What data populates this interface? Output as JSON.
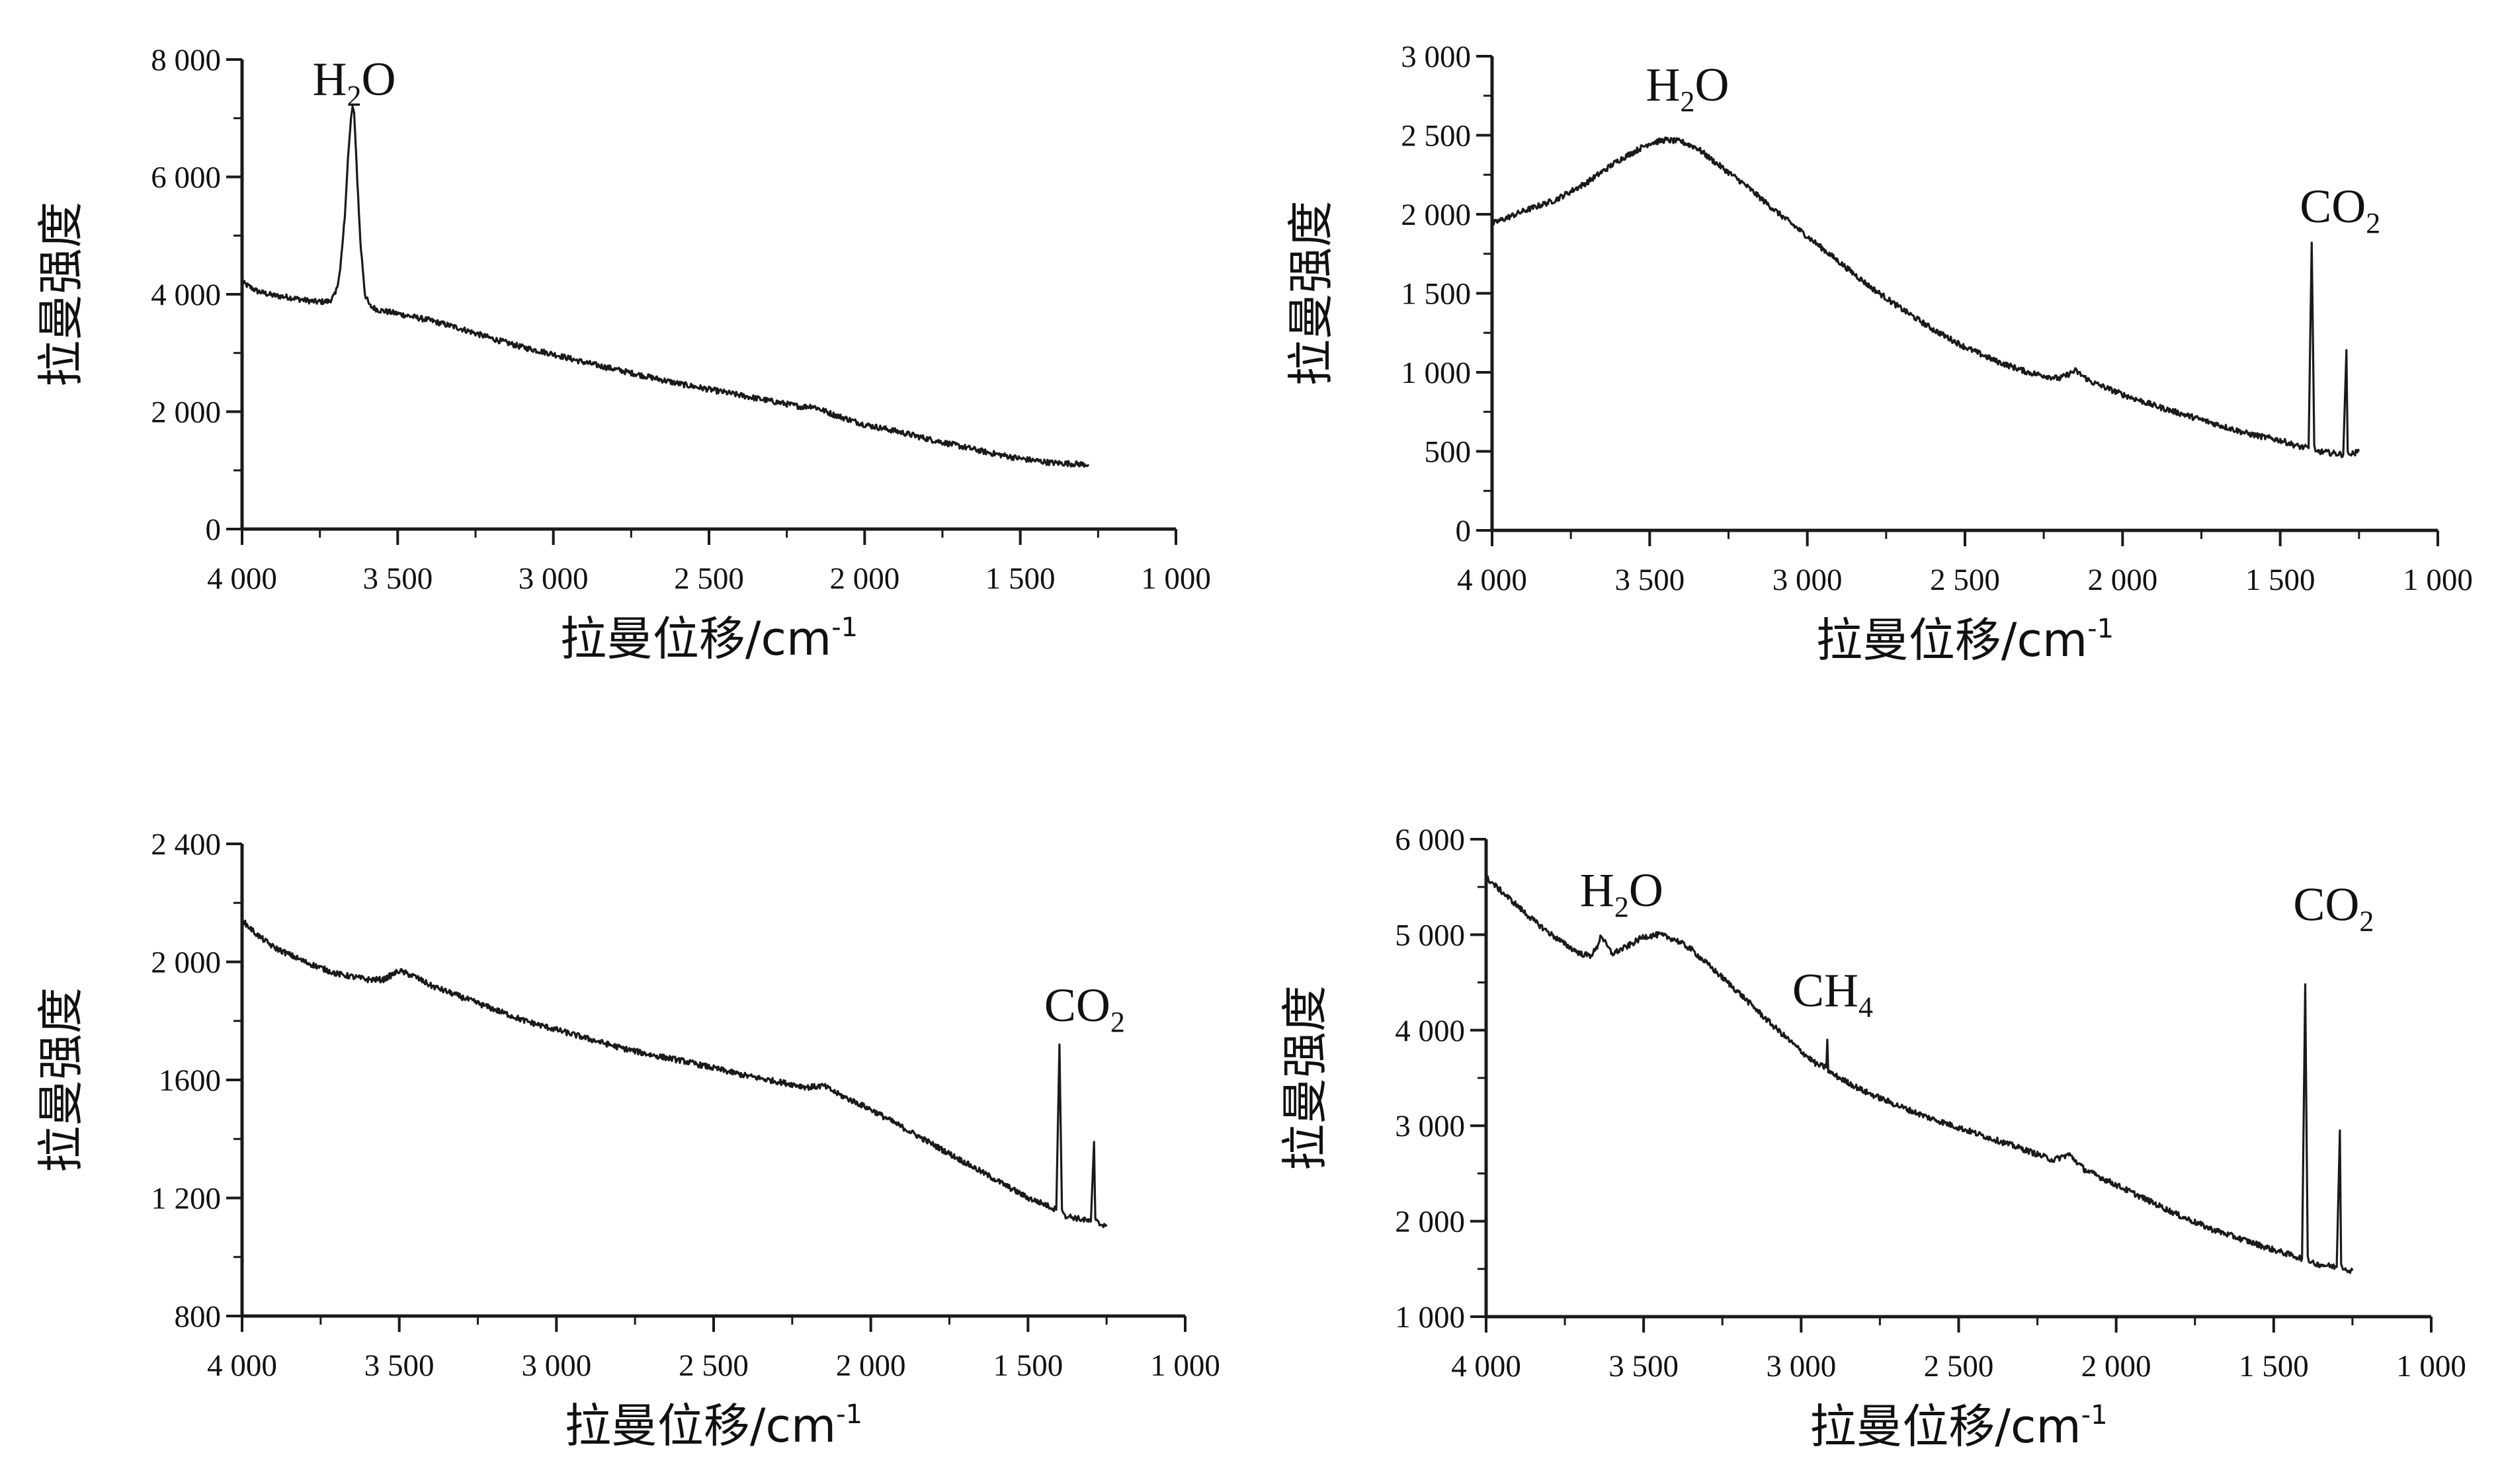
{
  "chart_data": [
    {
      "type": "line",
      "xlabel": "拉曼位移/cm",
      "xlabel_sup": "-1",
      "ylabel": "拉曼强度",
      "xlim": [
        4000,
        1000
      ],
      "ylim": [
        0,
        8000
      ],
      "xticks": [
        "4 000",
        "3 500",
        "3 000",
        "2 500",
        "2 000",
        "1 500",
        "1 000"
      ],
      "yticks": [
        "0",
        "2 000",
        "4 000",
        "6 000",
        "8 000"
      ],
      "annotations": [
        {
          "base": "H",
          "sub": "2",
          "tail": "O",
          "x": 3640,
          "y": 7400
        }
      ],
      "series": [
        {
          "x": [
            4000,
            3950,
            3900,
            3850,
            3800,
            3760,
            3720,
            3700,
            3685,
            3670,
            3660,
            3650,
            3645,
            3640,
            3632,
            3620,
            3605,
            3590,
            3560,
            3500,
            3400,
            3300,
            3200,
            3100,
            3000,
            2900,
            2800,
            2700,
            2600,
            2500,
            2400,
            2300,
            2200,
            2170,
            2100,
            2000,
            1900,
            1800,
            1700,
            1600,
            1500,
            1400,
            1280
          ],
          "y": [
            4200,
            4050,
            3980,
            3950,
            3900,
            3870,
            3880,
            4000,
            4400,
            5300,
            6300,
            7000,
            7200,
            7100,
            6200,
            4900,
            4000,
            3800,
            3730,
            3670,
            3560,
            3420,
            3250,
            3100,
            2980,
            2840,
            2720,
            2600,
            2480,
            2380,
            2280,
            2180,
            2080,
            2100,
            1950,
            1780,
            1670,
            1540,
            1420,
            1300,
            1200,
            1130,
            1100
          ]
        }
      ]
    },
    {
      "type": "line",
      "xlabel": "拉曼位移/cm",
      "xlabel_sup": "-1",
      "ylabel": "拉曼强度",
      "xlim": [
        4000,
        1000
      ],
      "ylim": [
        0,
        3000
      ],
      "xticks": [
        "4 000",
        "3 500",
        "3 000",
        "2 500",
        "2 000",
        "1 500",
        "1 000"
      ],
      "yticks": [
        "0",
        "500",
        "1 000",
        "1 500",
        "2 000",
        "2 500",
        "3 000"
      ],
      "annotations": [
        {
          "base": "H",
          "sub": "2",
          "tail": "O",
          "x": 3380,
          "y": 2720
        },
        {
          "base": "CO",
          "sub": "2",
          "tail": "",
          "x": 1310,
          "y": 1950
        }
      ],
      "series": [
        {
          "x": [
            4000,
            3900,
            3800,
            3700,
            3600,
            3500,
            3450,
            3400,
            3350,
            3300,
            3200,
            3100,
            3000,
            2900,
            2800,
            2700,
            2600,
            2500,
            2400,
            2300,
            2200,
            2150,
            2100,
            2000,
            1900,
            1800,
            1700,
            1600,
            1500,
            1440,
            1410,
            1400,
            1392,
            1388,
            1380,
            1340,
            1300,
            1290,
            1286,
            1282,
            1275,
            1250
          ],
          "y": [
            1940,
            2020,
            2090,
            2200,
            2340,
            2450,
            2470,
            2460,
            2420,
            2340,
            2190,
            2020,
            1860,
            1700,
            1540,
            1400,
            1270,
            1160,
            1070,
            1000,
            960,
            1010,
            940,
            860,
            790,
            730,
            670,
            610,
            570,
            530,
            520,
            1820,
            540,
            500,
            500,
            490,
            480,
            1140,
            500,
            480,
            480,
            500
          ]
        }
      ]
    },
    {
      "type": "line",
      "xlabel": "拉曼位移/cm",
      "xlabel_sup": "-1",
      "ylabel": "拉曼强度",
      "xlim": [
        4000,
        1000
      ],
      "ylim": [
        800,
        2400
      ],
      "xticks": [
        "4 000",
        "3 500",
        "3 000",
        "2 500",
        "2 000",
        "1 500",
        "1 000"
      ],
      "yticks": [
        "800",
        "1 200",
        "1600",
        "2 000",
        "2 400"
      ],
      "annotations": [
        {
          "base": "CO",
          "sub": "2",
          "tail": "",
          "x": 1320,
          "y": 1800
        }
      ],
      "series": [
        {
          "x": [
            4000,
            3950,
            3900,
            3800,
            3700,
            3600,
            3550,
            3500,
            3450,
            3400,
            3300,
            3200,
            3100,
            3000,
            2900,
            2800,
            2700,
            2600,
            2500,
            2400,
            2300,
            2200,
            2150,
            2100,
            2000,
            1900,
            1800,
            1700,
            1600,
            1500,
            1450,
            1410,
            1400,
            1392,
            1388,
            1380,
            1340,
            1300,
            1290,
            1286,
            1282,
            1270,
            1250
          ],
          "y": [
            2140,
            2090,
            2050,
            2000,
            1960,
            1940,
            1940,
            1970,
            1950,
            1920,
            1880,
            1840,
            1800,
            1770,
            1740,
            1710,
            1685,
            1665,
            1640,
            1615,
            1595,
            1575,
            1580,
            1550,
            1500,
            1440,
            1380,
            1320,
            1260,
            1200,
            1180,
            1160,
            1720,
            1160,
            1150,
            1140,
            1130,
            1120,
            1390,
            1130,
            1120,
            1110,
            1110
          ]
        }
      ]
    },
    {
      "type": "line",
      "xlabel": "拉曼位移/cm",
      "xlabel_sup": "-1",
      "ylabel": "拉曼强度",
      "xlim": [
        4000,
        1000
      ],
      "ylim": [
        1000,
        6000
      ],
      "xticks": [
        "4 000",
        "3 500",
        "3 000",
        "2 500",
        "2 000",
        "1 500",
        "1 000"
      ],
      "yticks": [
        "1 000",
        "2 000",
        "3 000",
        "4 000",
        "5 000",
        "6 000"
      ],
      "annotations": [
        {
          "base": "H",
          "sub": "2",
          "tail": "O",
          "x": 3570,
          "y": 5300
        },
        {
          "base": "CH",
          "sub": "4",
          "tail": "",
          "x": 2900,
          "y": 4250
        },
        {
          "base": "CO",
          "sub": "2",
          "tail": "",
          "x": 1310,
          "y": 5150
        }
      ],
      "series": [
        {
          "x": [
            4000,
            3950,
            3900,
            3850,
            3800,
            3750,
            3700,
            3670,
            3650,
            3635,
            3620,
            3600,
            3550,
            3500,
            3450,
            3400,
            3350,
            3300,
            3200,
            3100,
            3000,
            2950,
            2920,
            2917,
            2914,
            2900,
            2850,
            2800,
            2700,
            2600,
            2500,
            2400,
            2300,
            2200,
            2150,
            2100,
            2000,
            1900,
            1800,
            1700,
            1600,
            1500,
            1450,
            1410,
            1400,
            1392,
            1388,
            1380,
            1340,
            1300,
            1290,
            1286,
            1282,
            1270,
            1250
          ],
          "y": [
            5600,
            5450,
            5300,
            5150,
            5020,
            4900,
            4800,
            4780,
            4850,
            5000,
            4900,
            4800,
            4880,
            4980,
            5000,
            4950,
            4850,
            4700,
            4400,
            4080,
            3780,
            3640,
            3610,
            3900,
            3580,
            3540,
            3450,
            3360,
            3220,
            3090,
            2980,
            2870,
            2760,
            2640,
            2700,
            2540,
            2380,
            2220,
            2060,
            1920,
            1810,
            1700,
            1650,
            1610,
            4480,
            1640,
            1570,
            1560,
            1540,
            1520,
            2950,
            1550,
            1520,
            1500,
            1480
          ]
        }
      ]
    }
  ]
}
